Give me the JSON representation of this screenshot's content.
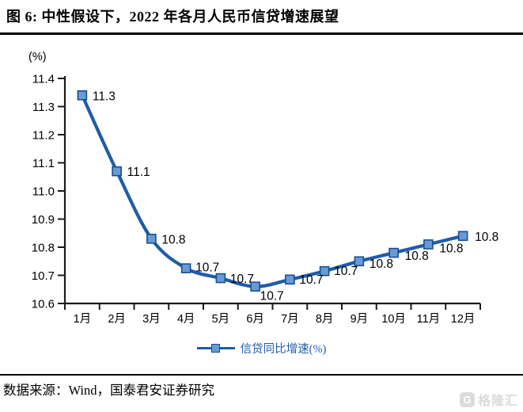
{
  "header": {
    "title": "图 6:  中性假设下，2022 年各月人民币信贷增速展望"
  },
  "footer": {
    "source": "数据来源：Wind，国泰君安证券研究"
  },
  "watermark": {
    "logo_letter": "G",
    "brand": "格隆汇"
  },
  "chart_data": {
    "type": "line",
    "title": "中性假设下，2022 年各月人民币信贷增速展望",
    "unit_label": "(%)",
    "xlabel": "",
    "ylabel": "(%)",
    "categories": [
      "1月",
      "2月",
      "3月",
      "4月",
      "5月",
      "6月",
      "7月",
      "8月",
      "9月",
      "10月",
      "11月",
      "12月"
    ],
    "yticks": [
      "11.4",
      "11.3",
      "11.2",
      "11.1",
      "11.0",
      "10.9",
      "10.8",
      "10.7",
      "10.6"
    ],
    "ylim": [
      10.6,
      11.4
    ],
    "grid": false,
    "legend_position": "bottom",
    "series": [
      {
        "name": "信贷同比增速(%)",
        "values": [
          11.34,
          11.07,
          10.83,
          10.725,
          10.69,
          10.66,
          10.685,
          10.715,
          10.75,
          10.78,
          10.81,
          10.84
        ],
        "point_labels": [
          "11.3",
          "11.1",
          "10.8",
          "10.7",
          "10.7",
          "10.7",
          "10.7",
          "10.7",
          "10.8",
          "10.8",
          "10.8",
          "10.8"
        ]
      }
    ],
    "colors": {
      "line": "#1E5CA8",
      "marker_fill": "#6A9AD4",
      "marker_border": "#174F8F",
      "axis": "#1A1A1A",
      "label": "#000000"
    }
  }
}
